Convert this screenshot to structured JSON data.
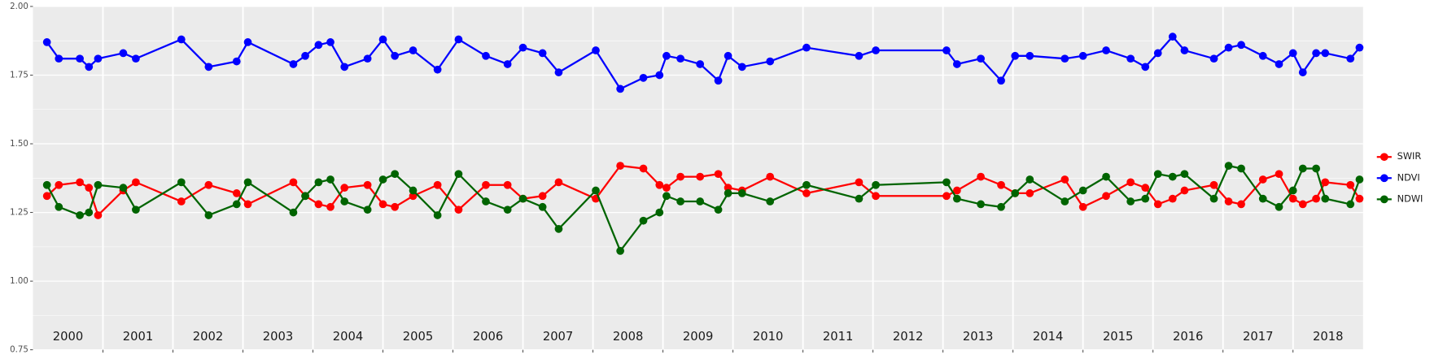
{
  "chart_data": {
    "type": "line",
    "x": [
      2000.2,
      2000.37,
      2000.67,
      2000.8,
      2000.93,
      2001.29,
      2001.47,
      2002.12,
      2002.51,
      2002.91,
      2003.07,
      2003.72,
      2003.89,
      2004.08,
      2004.25,
      2004.45,
      2004.78,
      2005.0,
      2005.17,
      2005.43,
      2005.78,
      2006.08,
      2006.47,
      2006.78,
      2007.0,
      2007.28,
      2007.51,
      2008.04,
      2008.39,
      2008.72,
      2008.95,
      2009.05,
      2009.25,
      2009.53,
      2009.79,
      2009.93,
      2010.13,
      2010.53,
      2011.05,
      2011.8,
      2012.04,
      2013.05,
      2013.2,
      2013.54,
      2013.83,
      2014.03,
      2014.24,
      2014.74,
      2015.0,
      2015.33,
      2015.68,
      2015.89,
      2016.07,
      2016.28,
      2016.45,
      2016.87,
      2017.08,
      2017.26,
      2017.57,
      2017.8,
      2018.0,
      2018.14,
      2018.33,
      2018.46,
      2018.82,
      2018.95
    ],
    "series": [
      {
        "name": "SWIR",
        "color": "#ff0000",
        "values": [
          1.31,
          1.35,
          1.36,
          1.34,
          1.24,
          1.33,
          1.36,
          1.29,
          1.35,
          1.32,
          1.28,
          1.36,
          1.31,
          1.28,
          1.27,
          1.34,
          1.35,
          1.28,
          1.27,
          1.31,
          1.35,
          1.26,
          1.35,
          1.35,
          1.3,
          1.31,
          1.36,
          1.3,
          1.42,
          1.41,
          1.35,
          1.34,
          1.38,
          1.38,
          1.39,
          1.34,
          1.33,
          1.38,
          1.32,
          1.36,
          1.31,
          1.31,
          1.33,
          1.38,
          1.35,
          1.32,
          1.32,
          1.37,
          1.27,
          1.31,
          1.36,
          1.34,
          1.28,
          1.3,
          1.33,
          1.35,
          1.29,
          1.28,
          1.37,
          1.39,
          1.3,
          1.28,
          1.3,
          1.36,
          1.35,
          1.3
        ]
      },
      {
        "name": "NDVI",
        "color": "#0000ff",
        "values": [
          1.87,
          1.81,
          1.81,
          1.78,
          1.81,
          1.83,
          1.81,
          1.88,
          1.78,
          1.8,
          1.87,
          1.79,
          1.82,
          1.86,
          1.87,
          1.78,
          1.81,
          1.88,
          1.82,
          1.84,
          1.77,
          1.88,
          1.82,
          1.79,
          1.85,
          1.83,
          1.76,
          1.84,
          1.7,
          1.74,
          1.75,
          1.82,
          1.81,
          1.79,
          1.73,
          1.82,
          1.78,
          1.8,
          1.85,
          1.82,
          1.84,
          1.84,
          1.79,
          1.81,
          1.73,
          1.82,
          1.82,
          1.81,
          1.82,
          1.84,
          1.81,
          1.78,
          1.83,
          1.89,
          1.84,
          1.81,
          1.85,
          1.86,
          1.82,
          1.79,
          1.83,
          1.76,
          1.83,
          1.83,
          1.81,
          1.85
        ]
      },
      {
        "name": "NDWI",
        "color": "#006400",
        "values": [
          1.35,
          1.27,
          1.24,
          1.25,
          1.35,
          1.34,
          1.26,
          1.36,
          1.24,
          1.28,
          1.36,
          1.25,
          1.31,
          1.36,
          1.37,
          1.29,
          1.26,
          1.37,
          1.39,
          1.33,
          1.24,
          1.39,
          1.29,
          1.26,
          1.3,
          1.27,
          1.19,
          1.33,
          1.11,
          1.22,
          1.25,
          1.31,
          1.29,
          1.29,
          1.26,
          1.32,
          1.32,
          1.29,
          1.35,
          1.3,
          1.35,
          1.36,
          1.3,
          1.28,
          1.27,
          1.32,
          1.37,
          1.29,
          1.33,
          1.38,
          1.29,
          1.3,
          1.39,
          1.38,
          1.39,
          1.3,
          1.42,
          1.41,
          1.3,
          1.27,
          1.33,
          1.41,
          1.41,
          1.3,
          1.28,
          1.37
        ]
      }
    ],
    "xlim": [
      2000,
      2019
    ],
    "xticks": [
      2001,
      2002,
      2003,
      2004,
      2005,
      2006,
      2007,
      2008,
      2009,
      2010,
      2011,
      2012,
      2013,
      2014,
      2015,
      2016,
      2017,
      2018
    ],
    "year_labels": [
      {
        "value": 2000.5,
        "label": "2000"
      },
      {
        "value": 2001.5,
        "label": "2001"
      },
      {
        "value": 2002.5,
        "label": "2002"
      },
      {
        "value": 2003.5,
        "label": "2003"
      },
      {
        "value": 2004.5,
        "label": "2004"
      },
      {
        "value": 2005.5,
        "label": "2005"
      },
      {
        "value": 2006.5,
        "label": "2006"
      },
      {
        "value": 2007.5,
        "label": "2007"
      },
      {
        "value": 2008.5,
        "label": "2008"
      },
      {
        "value": 2009.5,
        "label": "2009"
      },
      {
        "value": 2010.5,
        "label": "2010"
      },
      {
        "value": 2011.5,
        "label": "2011"
      },
      {
        "value": 2012.5,
        "label": "2012"
      },
      {
        "value": 2013.5,
        "label": "2013"
      },
      {
        "value": 2014.5,
        "label": "2014"
      },
      {
        "value": 2015.5,
        "label": "2015"
      },
      {
        "value": 2016.5,
        "label": "2016"
      },
      {
        "value": 2017.5,
        "label": "2017"
      },
      {
        "value": 2018.5,
        "label": "2018"
      }
    ],
    "ylim": [
      0.75,
      2.0
    ],
    "yticks": [
      {
        "value": 0.75,
        "label": "0.75"
      },
      {
        "value": 1.0,
        "label": "1.00"
      },
      {
        "value": 1.25,
        "label": "1.25"
      },
      {
        "value": 1.5,
        "label": "1.50"
      },
      {
        "value": 1.75,
        "label": "1.75"
      },
      {
        "value": 2.0,
        "label": "2.00"
      }
    ],
    "grid": true,
    "legend": "right"
  }
}
